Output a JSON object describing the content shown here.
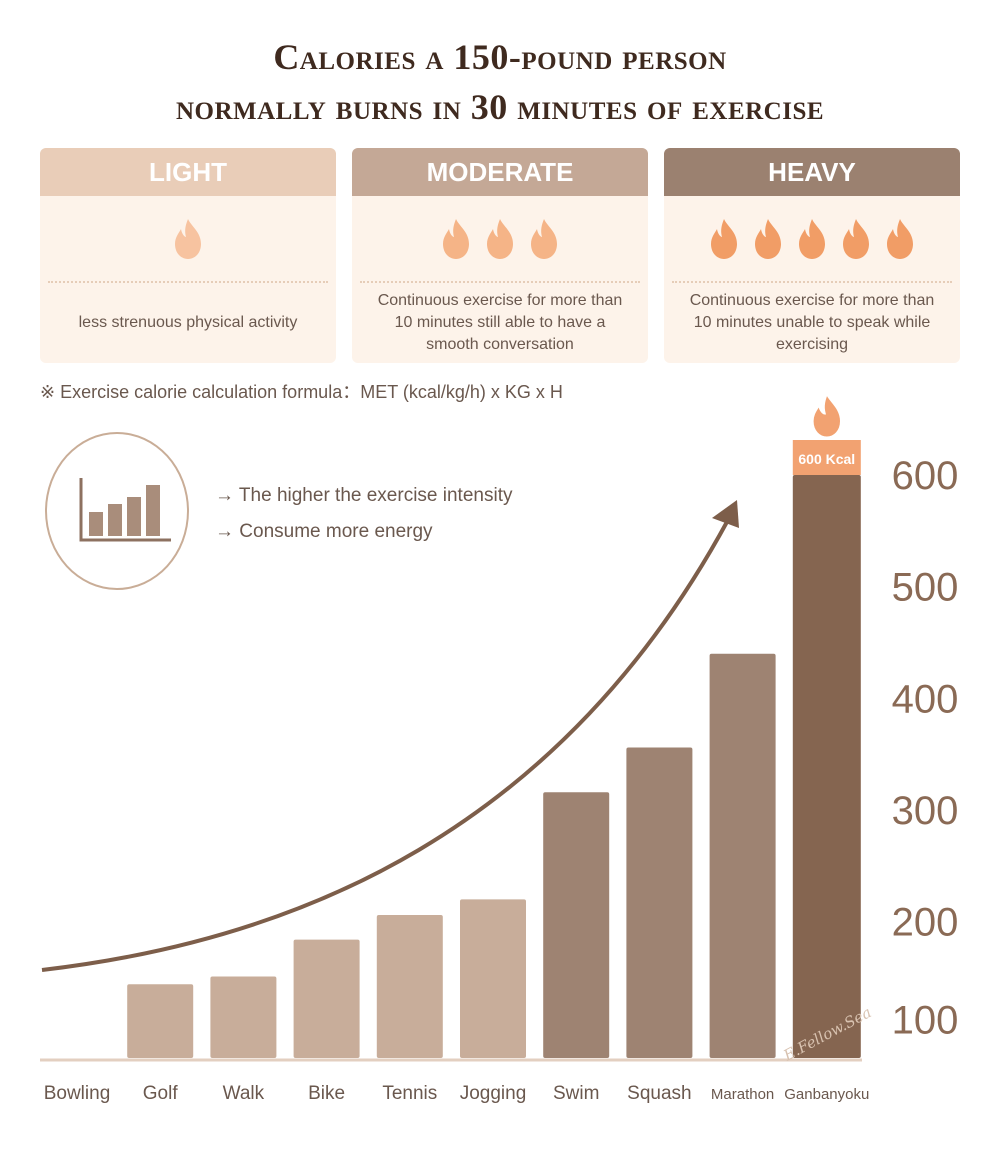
{
  "title_line1": "Calories a 150-pound person",
  "title_line2": "normally burns in 30 minutes of exercise",
  "cards": [
    {
      "label": "LIGHT",
      "flames": 1,
      "description": "less strenuous physical activity",
      "head_color": "#e9cdb8",
      "flame_color": "#f7c3a0"
    },
    {
      "label": "MODERATE",
      "flames": 3,
      "description": "Continuous exercise for more than 10 minutes still able to have a smooth conversation",
      "head_color": "#c4a896",
      "flame_color": "#f5b487"
    },
    {
      "label": "HEAVY",
      "flames": 5,
      "description": "Continuous exercise for more than 10 minutes unable to speak while exercising",
      "head_color": "#9b8170",
      "flame_color": "#f19d66"
    }
  ],
  "formula": "※ Exercise calorie calculation formula：MET (kcal/kg/h) x KG x H",
  "notes": [
    "→ The higher the exercise intensity",
    "→ Consume more energy"
  ],
  "signature": "E.Fellow.Sea",
  "chart_data": {
    "type": "bar",
    "categories": [
      "Bowling",
      "Golf",
      "Walk",
      "Bike",
      "Tennis",
      "Jogging",
      "Swim",
      "Squash",
      "Marathon",
      "Ganbanyoku"
    ],
    "values": [
      78,
      144,
      151,
      184,
      206,
      220,
      316,
      356,
      440,
      600
    ],
    "yticks": [
      100,
      200,
      300,
      400,
      500,
      600
    ],
    "ylim": [
      78,
      600
    ],
    "bar_colors": [
      "#ead3c1",
      "#c8ad9a",
      "#c8ad9a",
      "#c8ad9a",
      "#c8ad9a",
      "#c8ad9a",
      "#9e8372",
      "#9e8372",
      "#9e8372",
      "#856550"
    ],
    "annotation": "600 Kcal",
    "annotation_color": "#f2a271",
    "axis_color": "#e3cfc0",
    "tick_color": "#8a6a55",
    "arrow_color": "#7d5e4a"
  }
}
